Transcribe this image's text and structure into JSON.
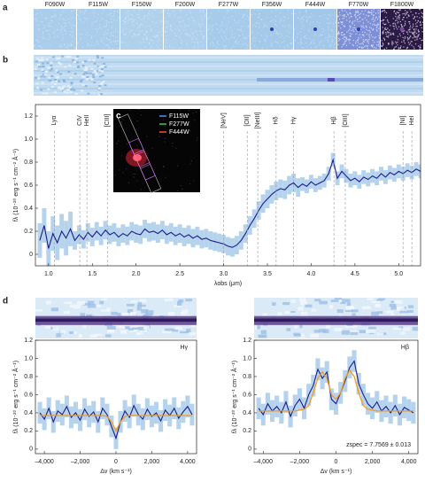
{
  "panel_labels": [
    "a",
    "b",
    "d"
  ],
  "image_strip": {
    "filters": [
      "F090W",
      "F115W",
      "F150W",
      "F200W",
      "F277W",
      "F356W",
      "F444W",
      "F770W",
      "F1800W"
    ]
  },
  "chart_data": [
    {
      "type": "line",
      "xlabel": "λobs (μm)",
      "ylabel": "fλ (10⁻²⁰ erg s⁻¹ cm⁻² Å⁻¹)",
      "xlim": [
        0.85,
        5.25
      ],
      "ylim": [
        -0.1,
        1.3
      ],
      "xticks": [
        {
          "value": 1,
          "label": "1.0"
        },
        1.5,
        {
          "value": 2,
          "label": "2.0"
        },
        2.5,
        {
          "value": 3,
          "label": "3.0"
        },
        3.5,
        {
          "value": 4,
          "label": "4.0"
        },
        4.5,
        {
          "value": 5,
          "label": "5.0"
        }
      ],
      "yticks": [
        0,
        0.2,
        0.4,
        0.6,
        0.8,
        {
          "value": 1,
          "label": "1.0"
        },
        1.2
      ],
      "color": "#1c1c8a",
      "band_color": "#b5d3ec",
      "x": [
        0.9,
        0.95,
        1,
        1.05,
        1.1,
        1.15,
        1.2,
        1.25,
        1.3,
        1.35,
        1.4,
        1.45,
        1.5,
        1.55,
        1.6,
        1.65,
        1.7,
        1.75,
        1.8,
        1.85,
        1.9,
        1.95,
        2,
        2.05,
        2.1,
        2.15,
        2.2,
        2.25,
        2.3,
        2.35,
        2.4,
        2.45,
        2.5,
        2.55,
        2.6,
        2.65,
        2.7,
        2.75,
        2.8,
        2.85,
        2.9,
        2.95,
        3,
        3.05,
        3.1,
        3.15,
        3.2,
        3.25,
        3.3,
        3.35,
        3.4,
        3.45,
        3.5,
        3.55,
        3.6,
        3.65,
        3.7,
        3.75,
        3.8,
        3.85,
        3.9,
        3.95,
        4,
        4.05,
        4.1,
        4.15,
        4.2,
        4.25,
        4.3,
        4.35,
        4.4,
        4.45,
        4.5,
        4.55,
        4.6,
        4.65,
        4.7,
        4.75,
        4.8,
        4.85,
        4.9,
        4.95,
        5,
        5.05,
        5.1,
        5.15,
        5.2,
        5.25
      ],
      "values": [
        0.12,
        0.25,
        0.05,
        0.18,
        0.1,
        0.2,
        0.14,
        0.22,
        0.12,
        0.17,
        0.13,
        0.19,
        0.15,
        0.2,
        0.16,
        0.21,
        0.17,
        0.19,
        0.15,
        0.18,
        0.16,
        0.2,
        0.18,
        0.17,
        0.22,
        0.19,
        0.2,
        0.18,
        0.21,
        0.17,
        0.19,
        0.16,
        0.18,
        0.15,
        0.17,
        0.14,
        0.16,
        0.13,
        0.14,
        0.12,
        0.11,
        0.1,
        0.09,
        0.07,
        0.06,
        0.08,
        0.12,
        0.18,
        0.25,
        0.31,
        0.38,
        0.44,
        0.48,
        0.52,
        0.55,
        0.57,
        0.56,
        0.6,
        0.62,
        0.58,
        0.61,
        0.59,
        0.63,
        0.6,
        0.62,
        0.64,
        0.7,
        0.82,
        0.66,
        0.72,
        0.68,
        0.64,
        0.66,
        0.63,
        0.67,
        0.65,
        0.68,
        0.66,
        0.7,
        0.67,
        0.71,
        0.69,
        0.72,
        0.7,
        0.73,
        0.71,
        0.74,
        0.72
      ],
      "errors": [
        0.15,
        0.15,
        0.15,
        0.15,
        0.15,
        0.15,
        0.15,
        0.15,
        0.08,
        0.08,
        0.08,
        0.08,
        0.08,
        0.08,
        0.08,
        0.08,
        0.08,
        0.08,
        0.08,
        0.08,
        0.08,
        0.08,
        0.08,
        0.08,
        0.08,
        0.08,
        0.08,
        0.08,
        0.08,
        0.08,
        0.08,
        0.08,
        0.08,
        0.08,
        0.08,
        0.08,
        0.08,
        0.08,
        0.08,
        0.08,
        0.08,
        0.08,
        0.08,
        0.08,
        0.08,
        0.08,
        0.08,
        0.08,
        0.08,
        0.08,
        0.08,
        0.08,
        0.08,
        0.08,
        0.08,
        0.08,
        0.08,
        0.08,
        0.08,
        0.08,
        0.06,
        0.06,
        0.06,
        0.06,
        0.06,
        0.06,
        0.06,
        0.06,
        0.06,
        0.06,
        0.06,
        0.06,
        0.06,
        0.06,
        0.06,
        0.06,
        0.06,
        0.06,
        0.06,
        0.06,
        0.06,
        0.06,
        0.06,
        0.06,
        0.06,
        0.06,
        0.06,
        0.06
      ],
      "lines": [
        {
          "label": "Lyα",
          "x": 1.066
        },
        {
          "label": "CIV",
          "x": 1.357
        },
        {
          "label": "HeII",
          "x": 1.438
        },
        {
          "label": "[CIII]",
          "x": 1.672
        },
        {
          "label": "[NeV]",
          "x": 3.0
        },
        {
          "label": "[OII]",
          "x": 3.27
        },
        {
          "label": "[NeIII]",
          "x": 3.39
        },
        {
          "label": "Hδ",
          "x": 3.6
        },
        {
          "label": "Hγ",
          "x": 3.8
        },
        {
          "label": "Hβ",
          "x": 4.26
        },
        {
          "label": "[OIII]",
          "x": 4.39
        },
        {
          "label": "[NI]",
          "x": 5.05
        },
        {
          "label": "HeI",
          "x": 5.15
        }
      ],
      "inset": {
        "label": "c",
        "legend": [
          {
            "name": "F115W",
            "color": "#5b8cff"
          },
          {
            "name": "F277W",
            "color": "#4cc450"
          },
          {
            "name": "F444W",
            "color": "#ff5030"
          }
        ]
      }
    },
    {
      "type": "line",
      "xlabel": "Δv (km s⁻¹)",
      "ylabel": "fλ (10⁻²⁰ erg s⁻¹ cm⁻² Å⁻¹)",
      "strip_label": "Hγ",
      "xlim": [
        -4500,
        4500
      ],
      "ylim": [
        -0.05,
        1.2
      ],
      "xticks": [
        {
          "value": -4000,
          "label": "–4,000"
        },
        {
          "value": -2000,
          "label": "–2,000"
        },
        0,
        {
          "value": 2000,
          "label": "2,000"
        },
        {
          "value": 4000,
          "label": "4,000"
        }
      ],
      "yticks": [
        0,
        0.2,
        0.4,
        0.6,
        0.8,
        {
          "value": 1,
          "label": "1.0"
        },
        1.2
      ],
      "color": "#1c1c8a",
      "band_color": "#b5d3ec",
      "fit_color": "#f29a1f",
      "x": [
        -4250,
        -4000,
        -3750,
        -3500,
        -3250,
        -3000,
        -2750,
        -2500,
        -2250,
        -2000,
        -1750,
        -1500,
        -1250,
        -1000,
        -750,
        -500,
        -250,
        0,
        250,
        500,
        750,
        1000,
        1250,
        1500,
        1750,
        2000,
        2250,
        2500,
        2750,
        3000,
        3250,
        3500,
        3750,
        4000,
        4250
      ],
      "values": [
        0.4,
        0.33,
        0.45,
        0.3,
        0.42,
        0.38,
        0.47,
        0.35,
        0.4,
        0.32,
        0.44,
        0.36,
        0.41,
        0.3,
        0.45,
        0.38,
        0.25,
        0.12,
        0.3,
        0.42,
        0.35,
        0.48,
        0.38,
        0.33,
        0.44,
        0.36,
        0.4,
        0.31,
        0.43,
        0.37,
        0.45,
        0.34,
        0.41,
        0.47,
        0.38
      ],
      "errors": [
        0.12,
        0.12,
        0.12,
        0.12,
        0.12,
        0.12,
        0.12,
        0.12,
        0.12,
        0.12,
        0.12,
        0.12,
        0.12,
        0.12,
        0.12,
        0.12,
        0.12,
        0.12,
        0.12,
        0.12,
        0.12,
        0.12,
        0.12,
        0.12,
        0.12,
        0.12,
        0.12,
        0.12,
        0.12,
        0.12,
        0.12,
        0.12,
        0.12,
        0.12,
        0.12
      ],
      "fit": [
        0.37,
        0.37,
        0.37,
        0.37,
        0.37,
        0.37,
        0.37,
        0.37,
        0.37,
        0.37,
        0.37,
        0.37,
        0.37,
        0.37,
        0.37,
        0.36,
        0.3,
        0.2,
        0.3,
        0.36,
        0.37,
        0.37,
        0.37,
        0.37,
        0.37,
        0.37,
        0.37,
        0.37,
        0.37,
        0.37,
        0.37,
        0.37,
        0.37,
        0.37,
        0.37
      ]
    },
    {
      "type": "line",
      "xlabel": "Δv (km s⁻¹)",
      "ylabel": "fλ (10⁻²⁰ erg s⁻¹ cm⁻² Å⁻¹)",
      "strip_label": "Hβ",
      "annotation": "zspec = 7.7569 ± 0.013",
      "xlim": [
        -4500,
        4500
      ],
      "ylim": [
        -0.05,
        1.2
      ],
      "xticks": [
        {
          "value": -4000,
          "label": "–4,000"
        },
        {
          "value": -2000,
          "label": "–2,000"
        },
        0,
        {
          "value": 2000,
          "label": "2,000"
        },
        {
          "value": 4000,
          "label": "4,000"
        }
      ],
      "yticks": [
        0,
        0.2,
        0.4,
        0.6,
        0.8,
        {
          "value": 1,
          "label": "1.0"
        },
        1.2
      ],
      "color": "#1c1c8a",
      "band_color": "#b5d3ec",
      "fit_color": "#f29a1f",
      "x": [
        -4250,
        -4000,
        -3750,
        -3500,
        -3250,
        -3000,
        -2750,
        -2500,
        -2250,
        -2000,
        -1750,
        -1500,
        -1250,
        -1000,
        -750,
        -500,
        -250,
        0,
        250,
        500,
        750,
        1000,
        1250,
        1500,
        1750,
        2000,
        2250,
        2500,
        2750,
        3000,
        3250,
        3500,
        3750,
        4000,
        4250
      ],
      "values": [
        0.45,
        0.38,
        0.5,
        0.42,
        0.47,
        0.4,
        0.52,
        0.36,
        0.48,
        0.55,
        0.45,
        0.6,
        0.7,
        0.88,
        0.78,
        0.85,
        0.55,
        0.5,
        0.62,
        0.75,
        0.9,
        0.97,
        0.72,
        0.6,
        0.5,
        0.45,
        0.52,
        0.42,
        0.47,
        0.4,
        0.48,
        0.38,
        0.46,
        0.43,
        0.4
      ],
      "errors": [
        0.12,
        0.12,
        0.12,
        0.12,
        0.12,
        0.12,
        0.12,
        0.12,
        0.12,
        0.12,
        0.12,
        0.12,
        0.12,
        0.12,
        0.12,
        0.12,
        0.12,
        0.12,
        0.12,
        0.12,
        0.12,
        0.12,
        0.12,
        0.12,
        0.12,
        0.12,
        0.12,
        0.12,
        0.12,
        0.12,
        0.12,
        0.12,
        0.12,
        0.12,
        0.12
      ],
      "fit": [
        0.42,
        0.42,
        0.42,
        0.42,
        0.42,
        0.42,
        0.42,
        0.42,
        0.42,
        0.43,
        0.44,
        0.48,
        0.62,
        0.78,
        0.85,
        0.78,
        0.6,
        0.55,
        0.62,
        0.78,
        0.87,
        0.8,
        0.62,
        0.48,
        0.44,
        0.43,
        0.42,
        0.42,
        0.42,
        0.42,
        0.42,
        0.42,
        0.42,
        0.42,
        0.42
      ]
    }
  ]
}
